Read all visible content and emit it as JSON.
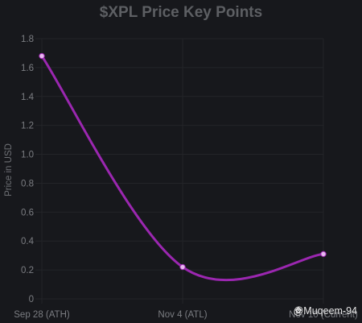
{
  "chart_data": {
    "type": "line",
    "title": "$XPL Price Key Points",
    "ylabel": "Price in USD",
    "xlabel": "",
    "categories": [
      "Sep 28 (ATH)",
      "Nov 4 (ATL)",
      "Nov 10 (Current)"
    ],
    "series": [
      {
        "values": [
          1.68,
          0.22,
          0.31
        ]
      }
    ],
    "ylim": [
      0,
      1.8
    ],
    "yticks": [
      0,
      0.2,
      0.4,
      0.6,
      0.8,
      1.0,
      1.2,
      1.4,
      1.6,
      1.8
    ],
    "ytick_labels": [
      "0",
      "0.2",
      "0.4",
      "0.6",
      "0.8",
      "1.0",
      "1.2",
      "1.4",
      "1.6",
      "1.8"
    ],
    "grid": true,
    "legend": "none",
    "colors": {
      "line": "#9b27b0",
      "point_fill": "#e8b8f0",
      "grid": "#232428",
      "background": "#17181c"
    }
  },
  "watermark": {
    "text": "@Muqeem-94",
    "icon": "binance-logo-icon"
  }
}
